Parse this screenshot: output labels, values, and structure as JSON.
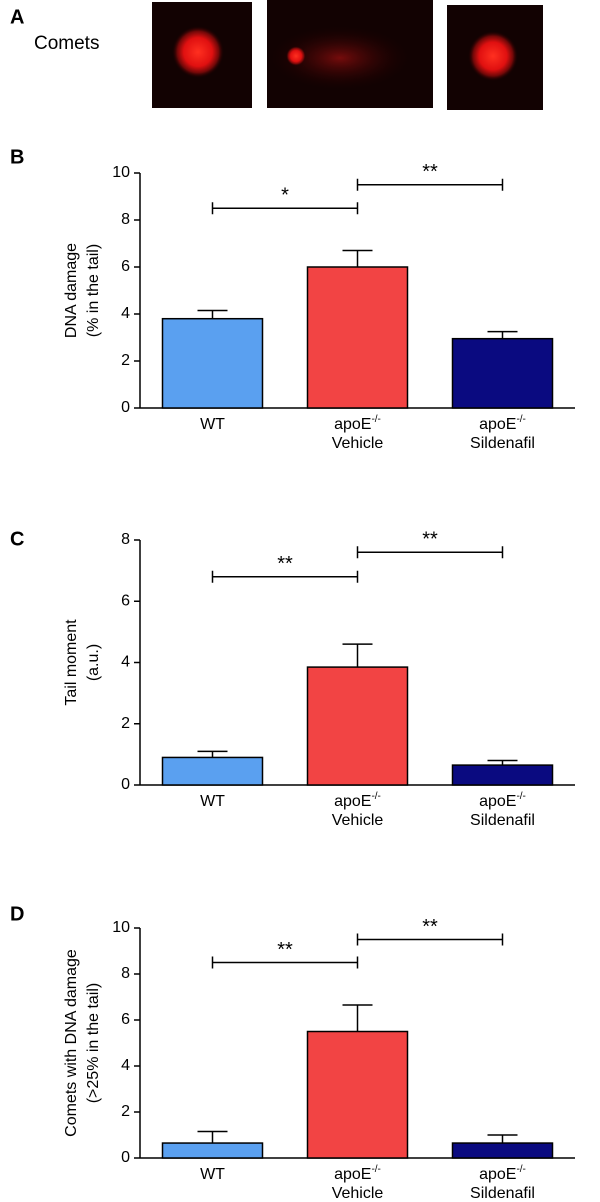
{
  "panel_a": {
    "label": "A",
    "title": "Comets"
  },
  "chart_data": [
    {
      "type": "bar",
      "panel": "B",
      "ylabel": [
        "DNA damage",
        "(% in the tail)"
      ],
      "categories": [
        {
          "name": "WT"
        },
        {
          "name": "apoE",
          "superscript": "-/-",
          "sublabel": "Vehicle"
        },
        {
          "name": "apoE",
          "superscript": "-/-",
          "sublabel": "Sildenafil"
        }
      ],
      "values": [
        3.8,
        6.0,
        2.95
      ],
      "errors": [
        0.35,
        0.7,
        0.3
      ],
      "colors": [
        "#5aa0f0",
        "#f24444",
        "#0a0a80"
      ],
      "ylim": [
        0,
        10
      ],
      "yticks": [
        0,
        2,
        4,
        6,
        8,
        10
      ],
      "significance": [
        {
          "from": 0,
          "to": 1,
          "label": "*"
        },
        {
          "from": 1,
          "to": 2,
          "label": "**"
        }
      ]
    },
    {
      "type": "bar",
      "panel": "C",
      "ylabel": [
        "Tail moment",
        "(a.u.)"
      ],
      "categories": [
        {
          "name": "WT"
        },
        {
          "name": "apoE",
          "superscript": "-/-",
          "sublabel": "Vehicle"
        },
        {
          "name": "apoE",
          "superscript": "-/-",
          "sublabel": "Sildenafil"
        }
      ],
      "values": [
        0.9,
        3.85,
        0.65
      ],
      "errors": [
        0.2,
        0.75,
        0.15
      ],
      "colors": [
        "#5aa0f0",
        "#f24444",
        "#0a0a80"
      ],
      "ylim": [
        0,
        8
      ],
      "yticks": [
        0,
        2,
        4,
        6,
        8
      ],
      "significance": [
        {
          "from": 0,
          "to": 1,
          "label": "**"
        },
        {
          "from": 1,
          "to": 2,
          "label": "**"
        }
      ]
    },
    {
      "type": "bar",
      "panel": "D",
      "ylabel": [
        "Comets with DNA damage",
        "(>25% in the tail)"
      ],
      "categories": [
        {
          "name": "WT"
        },
        {
          "name": "apoE",
          "superscript": "-/-",
          "sublabel": "Vehicle"
        },
        {
          "name": "apoE",
          "superscript": "-/-",
          "sublabel": "Sildenafil"
        }
      ],
      "values": [
        0.65,
        5.5,
        0.65
      ],
      "errors": [
        0.5,
        1.15,
        0.35
      ],
      "colors": [
        "#5aa0f0",
        "#f24444",
        "#0a0a80"
      ],
      "ylim": [
        0,
        10
      ],
      "yticks": [
        0,
        2,
        4,
        6,
        8,
        10
      ],
      "significance": [
        {
          "from": 0,
          "to": 1,
          "label": "**"
        },
        {
          "from": 1,
          "to": 2,
          "label": "**"
        }
      ]
    }
  ]
}
